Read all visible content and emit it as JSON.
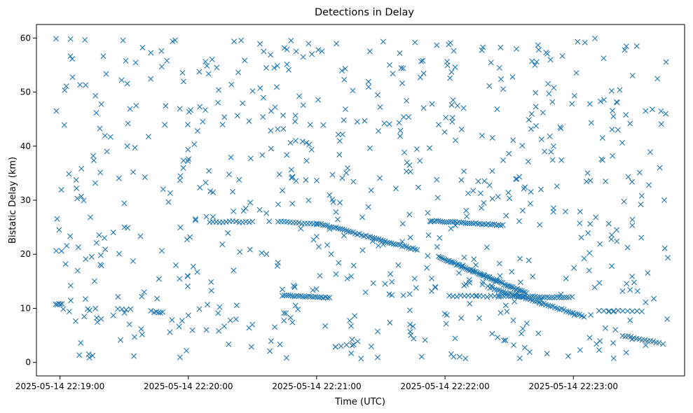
{
  "chart_data": {
    "type": "scatter",
    "title": "Detections in Delay",
    "xlabel": "Time (UTC)",
    "ylabel": "Bistatic Delay (km)",
    "marker": "x",
    "color": "#1f77b4",
    "grid": false,
    "legend": "none",
    "xlim": [
      "2025-05-14 22:18:49",
      "2025-05-14 22:23:52"
    ],
    "ylim": [
      -2.5,
      62.5
    ],
    "xticks": [
      "2025-05-14 22:19:00",
      "2025-05-14 22:20:00",
      "2025-05-14 22:21:00",
      "2025-05-14 22:22:00",
      "2025-05-14 22:23:00"
    ],
    "yticks": [
      "0",
      "10",
      "20",
      "30",
      "40",
      "50",
      "60"
    ],
    "tracks": [
      {
        "from": [
          "2025-05-14 22:20:10",
          26.0
        ],
        "to": [
          "2025-05-14 22:20:30",
          26.0
        ],
        "count": 14
      },
      {
        "from": [
          "2025-05-14 22:20:42",
          26.0
        ],
        "to": [
          "2025-05-14 22:21:00",
          25.6
        ],
        "count": 14
      },
      {
        "from": [
          "2025-05-14 22:21:00",
          25.8
        ],
        "to": [
          "2025-05-14 22:21:47",
          20.8
        ],
        "count": 48
      },
      {
        "from": [
          "2025-05-14 22:21:53",
          26.2
        ],
        "to": [
          "2025-05-14 22:22:27",
          25.4
        ],
        "count": 36
      },
      {
        "from": [
          "2025-05-14 22:21:57",
          19.5
        ],
        "to": [
          "2025-05-14 22:22:38",
          12.8
        ],
        "count": 60
      },
      {
        "from": [
          "2025-05-14 22:22:25",
          12.3
        ],
        "to": [
          "2025-05-14 22:22:58",
          12.0
        ],
        "count": 30
      },
      {
        "from": [
          "2025-05-14 22:22:20",
          14.0
        ],
        "to": [
          "2025-05-14 22:23:05",
          8.5
        ],
        "count": 44
      },
      {
        "from": [
          "2025-05-14 22:20:44",
          12.4
        ],
        "to": [
          "2025-05-14 22:21:06",
          12.0
        ],
        "count": 24
      },
      {
        "from": [
          "2025-05-14 22:19:44",
          9.3
        ],
        "to": [
          "2025-05-14 22:19:48",
          9.3
        ],
        "count": 5
      },
      {
        "from": [
          "2025-05-14 22:18:58",
          10.8
        ],
        "to": [
          "2025-05-14 22:19:01",
          10.8
        ],
        "count": 5
      },
      {
        "from": [
          "2025-05-14 22:22:02",
          12.3
        ],
        "to": [
          "2025-05-14 22:22:25",
          12.2
        ],
        "count": 14
      },
      {
        "from": [
          "2025-05-14 22:23:23",
          5.0
        ],
        "to": [
          "2025-05-14 22:23:40",
          3.6
        ],
        "count": 14
      },
      {
        "from": [
          "2025-05-14 22:23:12",
          9.5
        ],
        "to": [
          "2025-05-14 22:23:32",
          9.5
        ],
        "count": 10
      },
      {
        "from": [
          "2025-05-14 22:23:23",
          13.3
        ],
        "to": [
          "2025-05-14 22:23:30",
          13.3
        ],
        "count": 3
      },
      {
        "from": [
          "2025-05-14 22:19:27",
          9.8
        ],
        "to": [
          "2025-05-14 22:19:33",
          9.8
        ],
        "count": 4
      }
    ],
    "clutter": {
      "note_units": "random scattered detections, uniform over time and delay",
      "count": 700,
      "time_range": [
        "2025-05-14 22:18:58",
        "2025-05-14 22:23:45"
      ],
      "delay_range": [
        0.5,
        60.0
      ]
    }
  }
}
